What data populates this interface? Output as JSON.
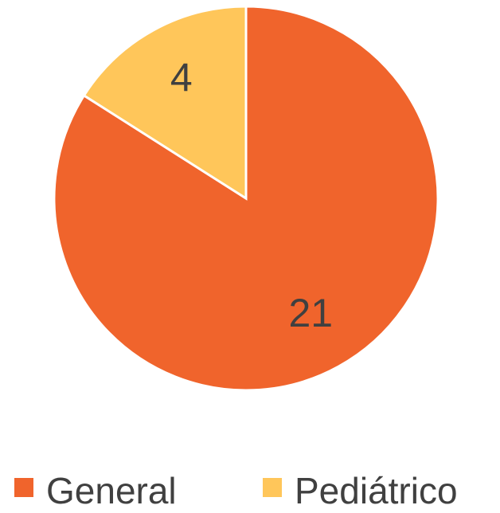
{
  "chart_data": {
    "type": "pie",
    "categories": [
      "General",
      "Pediátrico"
    ],
    "values": [
      21,
      4
    ],
    "colors": [
      "#f0642c",
      "#ffc65a"
    ],
    "legend": "bottom"
  }
}
